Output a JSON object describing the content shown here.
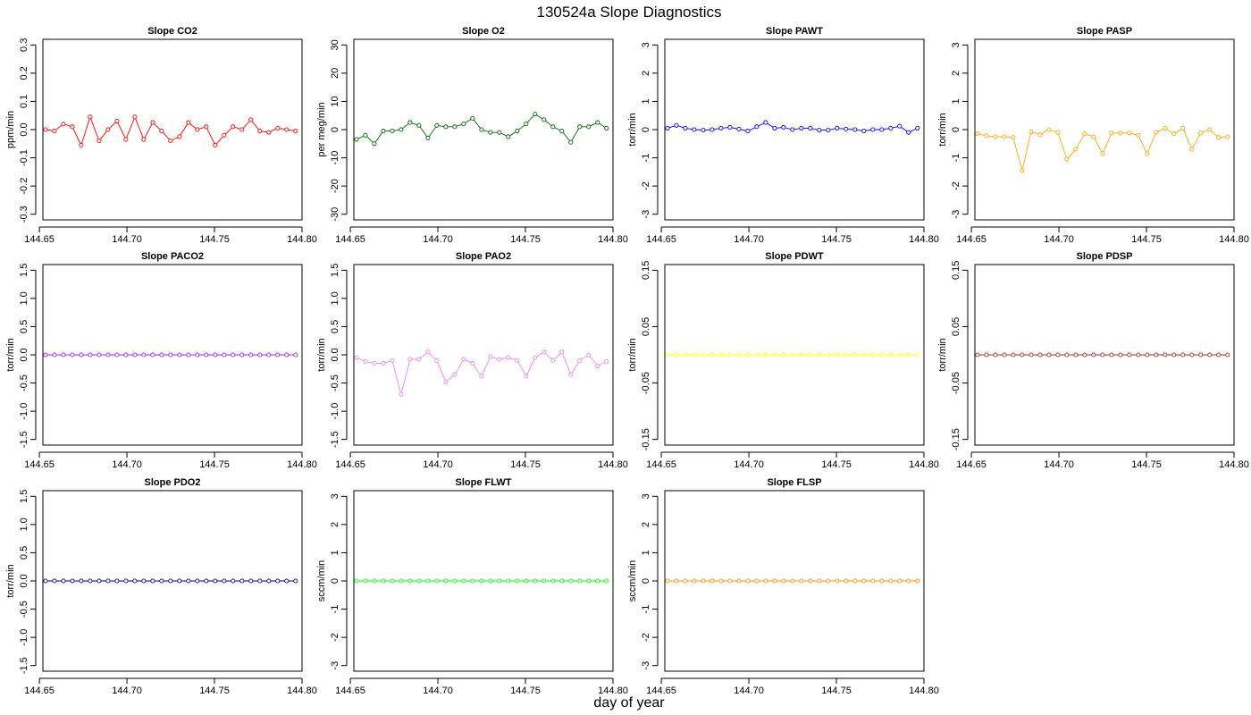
{
  "figure": {
    "title": "130524a   Slope Diagnostics",
    "xlabel": "day of year"
  },
  "chart_data": [
    {
      "type": "line",
      "title": "Slope CO2",
      "ylabel": "ppm/min",
      "color": "#ff0000",
      "ylim": [
        -0.32,
        0.32
      ],
      "yticks": [
        "-0.3",
        "-0.2",
        "-0.1",
        "0.0",
        "0.1",
        "0.2",
        "0.3"
      ],
      "xlim": [
        144.652,
        144.8
      ],
      "xticks": [
        "144.65",
        "144.70",
        "144.75",
        "144.80"
      ],
      "x": [
        144.6535,
        144.6586,
        144.6637,
        144.6688,
        144.6739,
        144.679,
        144.6841,
        144.6892,
        144.6943,
        144.6994,
        144.7045,
        144.7096,
        144.7147,
        144.7198,
        144.7249,
        144.73,
        144.7351,
        144.7402,
        144.7453,
        144.7504,
        144.7555,
        144.7606,
        144.7657,
        144.7708,
        144.7759,
        144.781,
        144.7861,
        144.7912,
        144.7963
      ],
      "y": [
        0.0,
        -0.005,
        0.02,
        0.01,
        -0.055,
        0.045,
        -0.04,
        0.0,
        0.03,
        -0.035,
        0.045,
        -0.035,
        0.025,
        -0.005,
        -0.04,
        -0.025,
        0.025,
        0.0,
        0.01,
        -0.055,
        -0.02,
        0.01,
        0.0,
        0.035,
        -0.005,
        -0.01,
        0.005,
        0.0,
        -0.005
      ]
    },
    {
      "type": "line",
      "title": "Slope O2",
      "ylabel": "per meg/min",
      "color": "#006400",
      "ylim": [
        -32,
        32
      ],
      "yticks": [
        "-30",
        "-20",
        "-10",
        "0",
        "10",
        "20",
        "30"
      ],
      "xlim": [
        144.652,
        144.8
      ],
      "xticks": [
        "144.65",
        "144.70",
        "144.75",
        "144.80"
      ],
      "x": [
        144.6535,
        144.6586,
        144.6637,
        144.6688,
        144.6739,
        144.679,
        144.6841,
        144.6892,
        144.6943,
        144.6994,
        144.7045,
        144.7096,
        144.7147,
        144.7198,
        144.7249,
        144.73,
        144.7351,
        144.7402,
        144.7453,
        144.7504,
        144.7555,
        144.7606,
        144.7657,
        144.7708,
        144.7759,
        144.781,
        144.7861,
        144.7912,
        144.7963
      ],
      "y": [
        -3.5,
        -2,
        -5,
        -0.5,
        -0.5,
        0,
        2.5,
        1.5,
        -3,
        1.5,
        1,
        1,
        2,
        4,
        0,
        -1,
        -1,
        -2.5,
        -0.5,
        2,
        5.5,
        3.5,
        1,
        -0.5,
        -4.5,
        1,
        1,
        2.5,
        0.5
      ]
    },
    {
      "type": "line",
      "title": "Slope PAWT",
      "ylabel": "torr/min",
      "color": "#0000ff",
      "ylim": [
        -3.2,
        3.2
      ],
      "yticks": [
        "-3",
        "-2",
        "-1",
        "0",
        "1",
        "2",
        "3"
      ],
      "xlim": [
        144.652,
        144.8
      ],
      "xticks": [
        "144.65",
        "144.70",
        "144.75",
        "144.80"
      ],
      "x": [
        144.6535,
        144.6586,
        144.6637,
        144.6688,
        144.6739,
        144.679,
        144.6841,
        144.6892,
        144.6943,
        144.6994,
        144.7045,
        144.7096,
        144.7147,
        144.7198,
        144.7249,
        144.73,
        144.7351,
        144.7402,
        144.7453,
        144.7504,
        144.7555,
        144.7606,
        144.7657,
        144.7708,
        144.7759,
        144.781,
        144.7861,
        144.7912,
        144.7963
      ],
      "y": [
        0.05,
        0.15,
        0.05,
        0.0,
        -0.02,
        0.0,
        0.05,
        0.08,
        0.02,
        -0.05,
        0.1,
        0.25,
        0.05,
        0.08,
        0.0,
        0.05,
        0.05,
        -0.02,
        -0.02,
        0.05,
        0.02,
        0.0,
        -0.05,
        0.0,
        0.0,
        0.05,
        0.12,
        -0.1,
        0.05
      ]
    },
    {
      "type": "line",
      "title": "Slope PASP",
      "ylabel": "torr/min",
      "color": "#ffa500",
      "ylim": [
        -3.2,
        3.2
      ],
      "yticks": [
        "-3",
        "-2",
        "-1",
        "0",
        "1",
        "2",
        "3"
      ],
      "xlim": [
        144.652,
        144.8
      ],
      "xticks": [
        "144.65",
        "144.70",
        "144.75",
        "144.80"
      ],
      "x": [
        144.6535,
        144.6586,
        144.6637,
        144.6688,
        144.6739,
        144.679,
        144.6841,
        144.6892,
        144.6943,
        144.6994,
        144.7045,
        144.7096,
        144.7147,
        144.7198,
        144.7249,
        144.73,
        144.7351,
        144.7402,
        144.7453,
        144.7504,
        144.7555,
        144.7606,
        144.7657,
        144.7708,
        144.7759,
        144.781,
        144.7861,
        144.7912,
        144.7963
      ],
      "y": [
        -0.15,
        -0.22,
        -0.25,
        -0.25,
        -0.28,
        -1.45,
        -0.08,
        -0.18,
        0.0,
        -0.1,
        -1.05,
        -0.7,
        -0.15,
        -0.25,
        -0.85,
        -0.12,
        -0.12,
        -0.12,
        -0.2,
        -0.85,
        -0.1,
        0.05,
        -0.15,
        0.05,
        -0.7,
        -0.12,
        0.0,
        -0.28,
        -0.25
      ]
    },
    {
      "type": "line",
      "title": "Slope PACO2",
      "ylabel": "torr/min",
      "color": "#a020f0",
      "ylim": [
        -1.6,
        1.6
      ],
      "yticks": [
        "-1.5",
        "-1.0",
        "-0.5",
        "0.0",
        "0.5",
        "1.0",
        "1.5"
      ],
      "xlim": [
        144.652,
        144.8
      ],
      "xticks": [
        "144.65",
        "144.70",
        "144.75",
        "144.80"
      ],
      "x": [
        144.6535,
        144.6586,
        144.6637,
        144.6688,
        144.6739,
        144.679,
        144.6841,
        144.6892,
        144.6943,
        144.6994,
        144.7045,
        144.7096,
        144.7147,
        144.7198,
        144.7249,
        144.73,
        144.7351,
        144.7402,
        144.7453,
        144.7504,
        144.7555,
        144.7606,
        144.7657,
        144.7708,
        144.7759,
        144.781,
        144.7861,
        144.7912,
        144.7963
      ],
      "y": [
        0,
        0,
        0,
        0,
        0,
        0,
        0,
        0,
        0,
        0,
        0,
        0,
        0,
        0,
        0,
        0,
        0,
        0,
        0,
        0,
        0,
        0,
        0,
        0,
        0,
        0,
        0,
        0,
        0
      ]
    },
    {
      "type": "line",
      "title": "Slope PAO2",
      "ylabel": "torr/min",
      "color": "#ee82ee",
      "ylim": [
        -1.6,
        1.6
      ],
      "yticks": [
        "-1.5",
        "-1.0",
        "-0.5",
        "0.0",
        "0.5",
        "1.0",
        "1.5"
      ],
      "xlim": [
        144.652,
        144.8
      ],
      "xticks": [
        "144.65",
        "144.70",
        "144.75",
        "144.80"
      ],
      "x": [
        144.6535,
        144.6586,
        144.6637,
        144.6688,
        144.6739,
        144.679,
        144.6841,
        144.6892,
        144.6943,
        144.6994,
        144.7045,
        144.7096,
        144.7147,
        144.7198,
        144.7249,
        144.73,
        144.7351,
        144.7402,
        144.7453,
        144.7504,
        144.7555,
        144.7606,
        144.7657,
        144.7708,
        144.7759,
        144.781,
        144.7861,
        144.7912,
        144.7963
      ],
      "y": [
        -0.05,
        -0.12,
        -0.15,
        -0.15,
        -0.1,
        -0.7,
        -0.08,
        -0.08,
        0.05,
        -0.1,
        -0.48,
        -0.35,
        -0.08,
        -0.15,
        -0.38,
        -0.03,
        -0.08,
        -0.05,
        -0.1,
        -0.38,
        -0.05,
        0.05,
        -0.1,
        0.05,
        -0.35,
        -0.1,
        0.0,
        -0.2,
        -0.12
      ]
    },
    {
      "type": "line",
      "title": "Slope PDWT",
      "ylabel": "torr/min",
      "color": "#ffff00",
      "ylim": [
        -0.16,
        0.16
      ],
      "yticks": [
        "-0.15",
        "-0.05",
        "0.05",
        "0.15"
      ],
      "xlim": [
        144.652,
        144.8
      ],
      "xticks": [
        "144.65",
        "144.70",
        "144.75",
        "144.80"
      ],
      "x": [
        144.6535,
        144.6586,
        144.6637,
        144.6688,
        144.6739,
        144.679,
        144.6841,
        144.6892,
        144.6943,
        144.6994,
        144.7045,
        144.7096,
        144.7147,
        144.7198,
        144.7249,
        144.73,
        144.7351,
        144.7402,
        144.7453,
        144.7504,
        144.7555,
        144.7606,
        144.7657,
        144.7708,
        144.7759,
        144.781,
        144.7861,
        144.7912,
        144.7963
      ],
      "y": [
        0,
        0,
        0,
        0,
        0,
        0,
        0,
        0,
        0,
        0,
        0,
        0,
        0,
        0,
        0,
        0,
        0,
        0,
        0,
        0,
        0,
        0,
        0,
        0,
        0,
        0,
        0,
        0,
        0
      ]
    },
    {
      "type": "line",
      "title": "Slope PDSP",
      "ylabel": "torr/min",
      "color": "#a52a2a",
      "ylim": [
        -0.16,
        0.16
      ],
      "yticks": [
        "-0.15",
        "-0.05",
        "0.05",
        "0.15"
      ],
      "xlim": [
        144.652,
        144.8
      ],
      "xticks": [
        "144.65",
        "144.70",
        "144.75",
        "144.80"
      ],
      "x": [
        144.6535,
        144.6586,
        144.6637,
        144.6688,
        144.6739,
        144.679,
        144.6841,
        144.6892,
        144.6943,
        144.6994,
        144.7045,
        144.7096,
        144.7147,
        144.7198,
        144.7249,
        144.73,
        144.7351,
        144.7402,
        144.7453,
        144.7504,
        144.7555,
        144.7606,
        144.7657,
        144.7708,
        144.7759,
        144.781,
        144.7861,
        144.7912,
        144.7963
      ],
      "y": [
        0,
        0,
        0,
        0,
        0,
        0,
        0,
        0,
        0,
        0,
        0,
        0,
        0,
        0,
        0,
        0,
        0,
        0,
        0,
        0,
        0,
        0,
        0,
        0,
        0,
        0,
        0,
        0,
        0
      ]
    },
    {
      "type": "line",
      "title": "Slope PDO2",
      "ylabel": "torr/min",
      "color": "#000080",
      "ylim": [
        -1.6,
        1.6
      ],
      "yticks": [
        "-1.5",
        "-1.0",
        "-0.5",
        "0.0",
        "0.5",
        "1.0",
        "1.5"
      ],
      "xlim": [
        144.652,
        144.8
      ],
      "xticks": [
        "144.65",
        "144.70",
        "144.75",
        "144.80"
      ],
      "x": [
        144.6535,
        144.6586,
        144.6637,
        144.6688,
        144.6739,
        144.679,
        144.6841,
        144.6892,
        144.6943,
        144.6994,
        144.7045,
        144.7096,
        144.7147,
        144.7198,
        144.7249,
        144.73,
        144.7351,
        144.7402,
        144.7453,
        144.7504,
        144.7555,
        144.7606,
        144.7657,
        144.7708,
        144.7759,
        144.781,
        144.7861,
        144.7912,
        144.7963
      ],
      "y": [
        0,
        0,
        0,
        0,
        0,
        0,
        0,
        0,
        0,
        0,
        0,
        0,
        0,
        0,
        0,
        0,
        0,
        0,
        0,
        0,
        0,
        0,
        0,
        0,
        0,
        0,
        0,
        0,
        0
      ]
    },
    {
      "type": "line",
      "title": "Slope FLWT",
      "ylabel": "sccm/min",
      "color": "#00ff00",
      "ylim": [
        -3.2,
        3.2
      ],
      "yticks": [
        "-3",
        "-2",
        "-1",
        "0",
        "1",
        "2",
        "3"
      ],
      "xlim": [
        144.652,
        144.8
      ],
      "xticks": [
        "144.65",
        "144.70",
        "144.75",
        "144.80"
      ],
      "x": [
        144.6535,
        144.6586,
        144.6637,
        144.6688,
        144.6739,
        144.679,
        144.6841,
        144.6892,
        144.6943,
        144.6994,
        144.7045,
        144.7096,
        144.7147,
        144.7198,
        144.7249,
        144.73,
        144.7351,
        144.7402,
        144.7453,
        144.7504,
        144.7555,
        144.7606,
        144.7657,
        144.7708,
        144.7759,
        144.781,
        144.7861,
        144.7912,
        144.7963
      ],
      "y": [
        0,
        0,
        0,
        0,
        0,
        0,
        0,
        0,
        0,
        0,
        0,
        0,
        0,
        0,
        0,
        0,
        0,
        0,
        0,
        0,
        0,
        0,
        0,
        0,
        0,
        0,
        0,
        0,
        0
      ]
    },
    {
      "type": "line",
      "title": "Slope FLSP",
      "ylabel": "sccm/min",
      "color": "#ff8c00",
      "ylim": [
        -3.2,
        3.2
      ],
      "yticks": [
        "-3",
        "-2",
        "-1",
        "0",
        "1",
        "2",
        "3"
      ],
      "xlim": [
        144.652,
        144.8
      ],
      "xticks": [
        "144.65",
        "144.70",
        "144.75",
        "144.80"
      ],
      "x": [
        144.6535,
        144.6586,
        144.6637,
        144.6688,
        144.6739,
        144.679,
        144.6841,
        144.6892,
        144.6943,
        144.6994,
        144.7045,
        144.7096,
        144.7147,
        144.7198,
        144.7249,
        144.73,
        144.7351,
        144.7402,
        144.7453,
        144.7504,
        144.7555,
        144.7606,
        144.7657,
        144.7708,
        144.7759,
        144.781,
        144.7861,
        144.7912,
        144.7963
      ],
      "y": [
        0,
        0,
        0,
        0,
        0,
        0,
        0,
        0,
        0,
        0,
        0,
        0,
        0,
        0,
        0,
        0,
        0,
        0,
        0,
        0,
        0,
        0,
        0,
        0,
        0,
        0,
        0,
        0,
        0
      ]
    }
  ]
}
